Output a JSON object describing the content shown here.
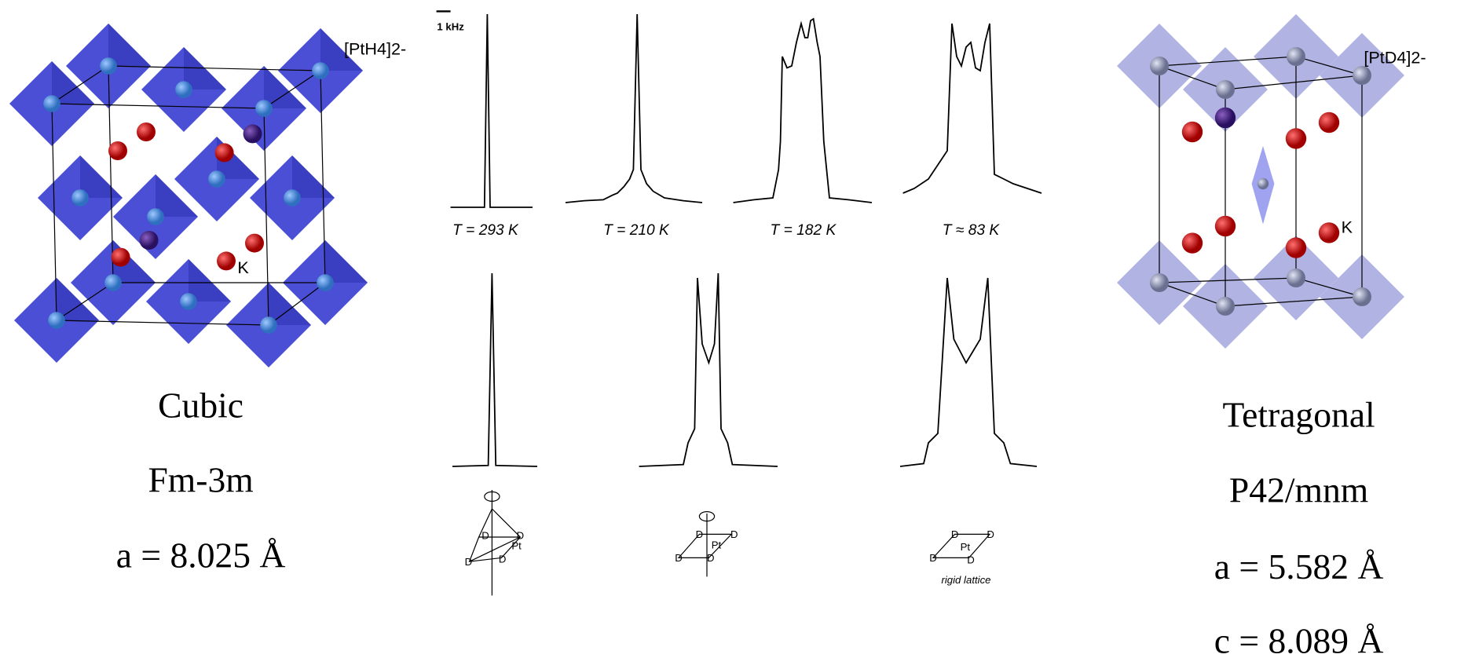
{
  "left": {
    "ion_label": "[PtH4]2-",
    "k_label": "K",
    "phase": "Cubic",
    "space_group": "Fm-3m",
    "lattice_a": "a = 8.025 Å"
  },
  "spectra": {
    "scale_label": "1 kHz",
    "temperatures": [
      "T = 293 K",
      "T = 210 K",
      "T = 182 K",
      "T ≈ 83 K"
    ],
    "molecules": [
      {
        "labels": [
          "Pt",
          "D",
          "D",
          "D",
          "D"
        ]
      },
      {
        "labels": [
          "Pt",
          "D",
          "D",
          "D",
          "D"
        ]
      },
      {
        "labels": [
          "Pt",
          "D",
          "D",
          "D",
          "D"
        ],
        "caption": "rigid lattice"
      }
    ]
  },
  "right": {
    "ion_label": "[PtD4]2-",
    "k_label": "K",
    "phase": "Tetragonal",
    "space_group": "P42/mnm",
    "lattice_a": "a = 5.582 Å",
    "lattice_c": "c = 8.089 Å"
  }
}
